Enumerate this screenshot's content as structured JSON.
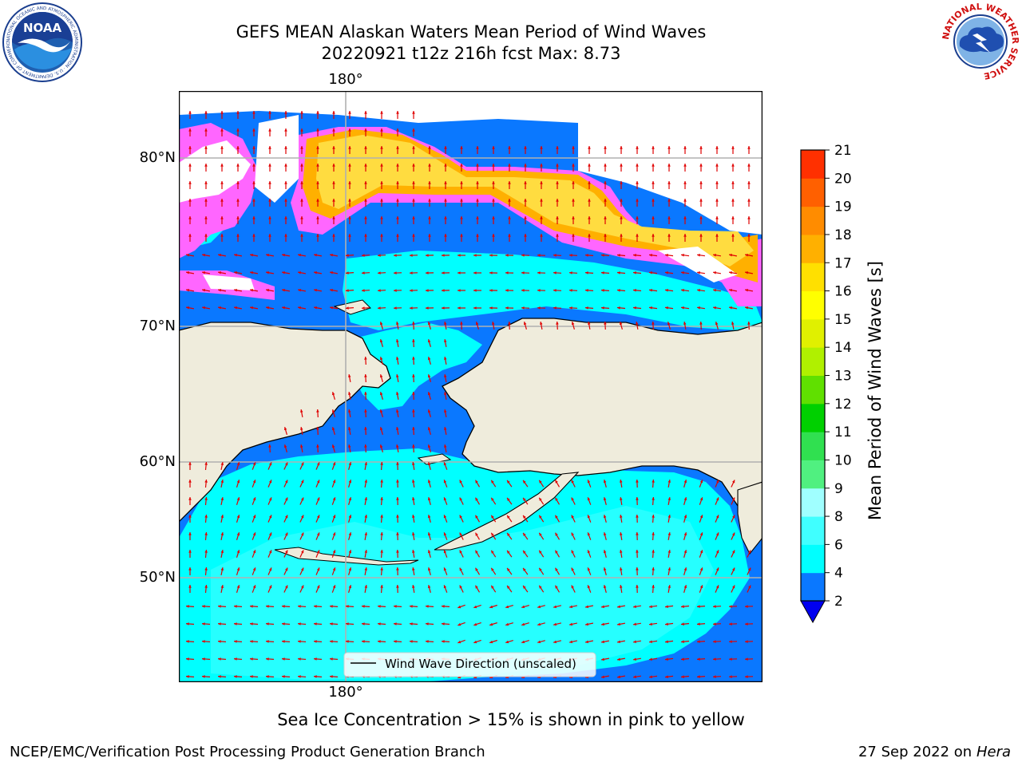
{
  "header": {
    "title_line1": "GEFS MEAN Alaskan Waters Mean Period of Wind Waves",
    "title_line2": "20220921 t12z 216h fcst   Max: 8.73"
  },
  "logos": {
    "left": {
      "name": "noaa-logo",
      "text": "NOAA",
      "ring_text": "NATIONAL OCEANIC AND ATMOSPHERIC ADMINISTRATION · U.S. DEPARTMENT OF COMMERCE"
    },
    "right": {
      "name": "nws-logo",
      "ring_text": "NATIONAL WEATHER SERVICE"
    }
  },
  "map": {
    "lat_labels": [
      "80°N",
      "70°N",
      "60°N",
      "50°N"
    ],
    "lon_label_top": "180°",
    "lon_label_bottom": "180°",
    "legend_label": "Wind Wave Direction (unscaled)",
    "arrow_color": "#e00000",
    "land_color": "#efecdc",
    "ocean_low_color": "#0a78ff",
    "ocean_mid_color": "#00ffff"
  },
  "colorbar": {
    "label": "Mean Period of Wind Waves [s]",
    "ticks": [
      "2",
      "4",
      "6",
      "8",
      "9",
      "10",
      "11",
      "12",
      "13",
      "14",
      "15",
      "16",
      "17",
      "18",
      "19",
      "20",
      "21"
    ],
    "colors": [
      "#0a78ff",
      "#00ffff",
      "#40ffff",
      "#a0ffff",
      "#50f080",
      "#30e050",
      "#00d000",
      "#60e000",
      "#b0f000",
      "#e0f000",
      "#ffff00",
      "#ffe000",
      "#ffb000",
      "#ff8c00",
      "#ff6000",
      "#ff3000",
      "#ff0000"
    ],
    "under_color": "#0000f0"
  },
  "caption": "Sea Ice Concentration > 15% is shown in pink to yellow",
  "footer": {
    "left": "NCEP/EMC/Verification Post Processing Product Generation Branch",
    "date": "27 Sep 2022 on",
    "machine": "Hera"
  }
}
